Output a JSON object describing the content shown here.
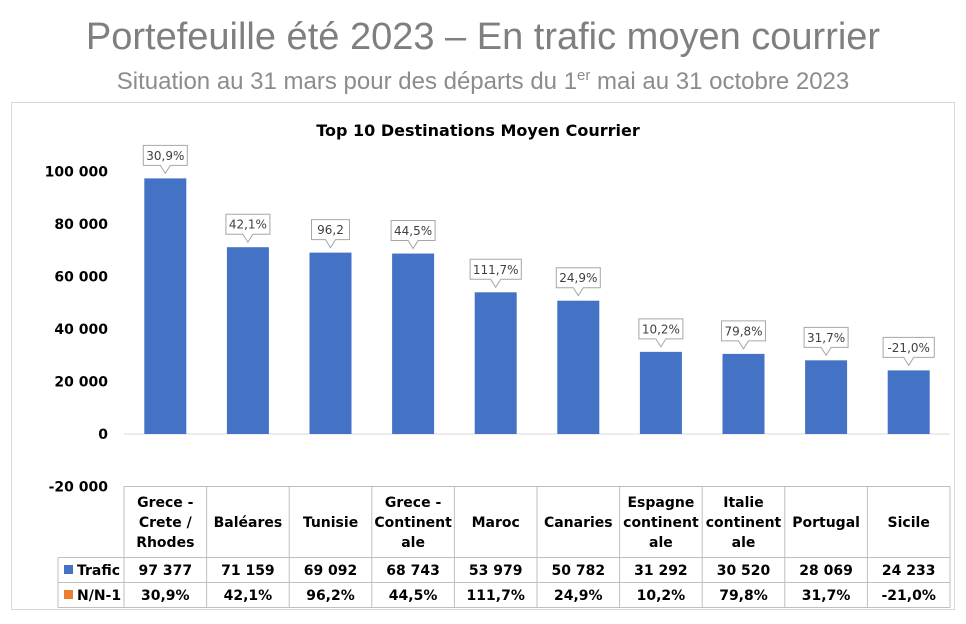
{
  "header": {
    "title": "Portefeuille été 2023 – En trafic moyen courrier",
    "subtitle_a": "Situation au 31 mars pour des départs du 1",
    "subtitle_sup": "er",
    "subtitle_b": " mai au 31 octobre 2023"
  },
  "chart_data": {
    "type": "bar",
    "title": "Top 10 Destinations Moyen Courrier",
    "categories": [
      "Grece - Crete / Rhodes",
      "Baléares",
      "Tunisie",
      "Grece - Continentale",
      "Maroc",
      "Canaries",
      "Espagne continentale",
      "Italie continentale",
      "Portugal",
      "Sicile"
    ],
    "category_lines": [
      [
        "Grece -",
        "Crete /",
        "Rhodes"
      ],
      [
        "Baléares"
      ],
      [
        "Tunisie"
      ],
      [
        "Grece -",
        "Continent",
        "ale"
      ],
      [
        "Maroc"
      ],
      [
        "Canaries"
      ],
      [
        "Espagne",
        "continent",
        "ale"
      ],
      [
        "Italie",
        "continent",
        "ale"
      ],
      [
        "Portugal"
      ],
      [
        "Sicile"
      ]
    ],
    "ylim": [
      -20000,
      100000
    ],
    "yticks": [
      100000,
      80000,
      60000,
      40000,
      20000,
      0,
      -20000
    ],
    "ytick_labels": [
      "100 000",
      "80 000",
      "60 000",
      "40 000",
      "20 000",
      "0",
      "-20 000"
    ],
    "series": [
      {
        "name": "Trafic",
        "color": "#4472c4",
        "values": [
          97377,
          71159,
          69092,
          68743,
          53979,
          50782,
          31292,
          30520,
          28069,
          24233
        ],
        "table_labels": [
          "97 377",
          "71 159",
          "69 092",
          "68 743",
          "53 979",
          "50 782",
          "31 292",
          "30 520",
          "28 069",
          "24 233"
        ]
      },
      {
        "name": "N/N-1",
        "color": "#ed7d31",
        "values": [
          30.9,
          42.1,
          96.2,
          44.5,
          111.7,
          24.9,
          10.2,
          79.8,
          31.7,
          -21.0
        ],
        "table_labels": [
          "30,9%",
          "42,1%",
          "96,2%",
          "44,5%",
          "111,7%",
          "24,9%",
          "10,2%",
          "79,8%",
          "31,7%",
          "-21,0%"
        ]
      }
    ],
    "data_labels": [
      "30,9%",
      "42,1%",
      "96,2",
      "44,5%",
      "111,7%",
      "24,9%",
      "10,2%",
      "79,8%",
      "31,7%",
      "-21,0%"
    ],
    "grid": false,
    "legend": "data-table"
  }
}
